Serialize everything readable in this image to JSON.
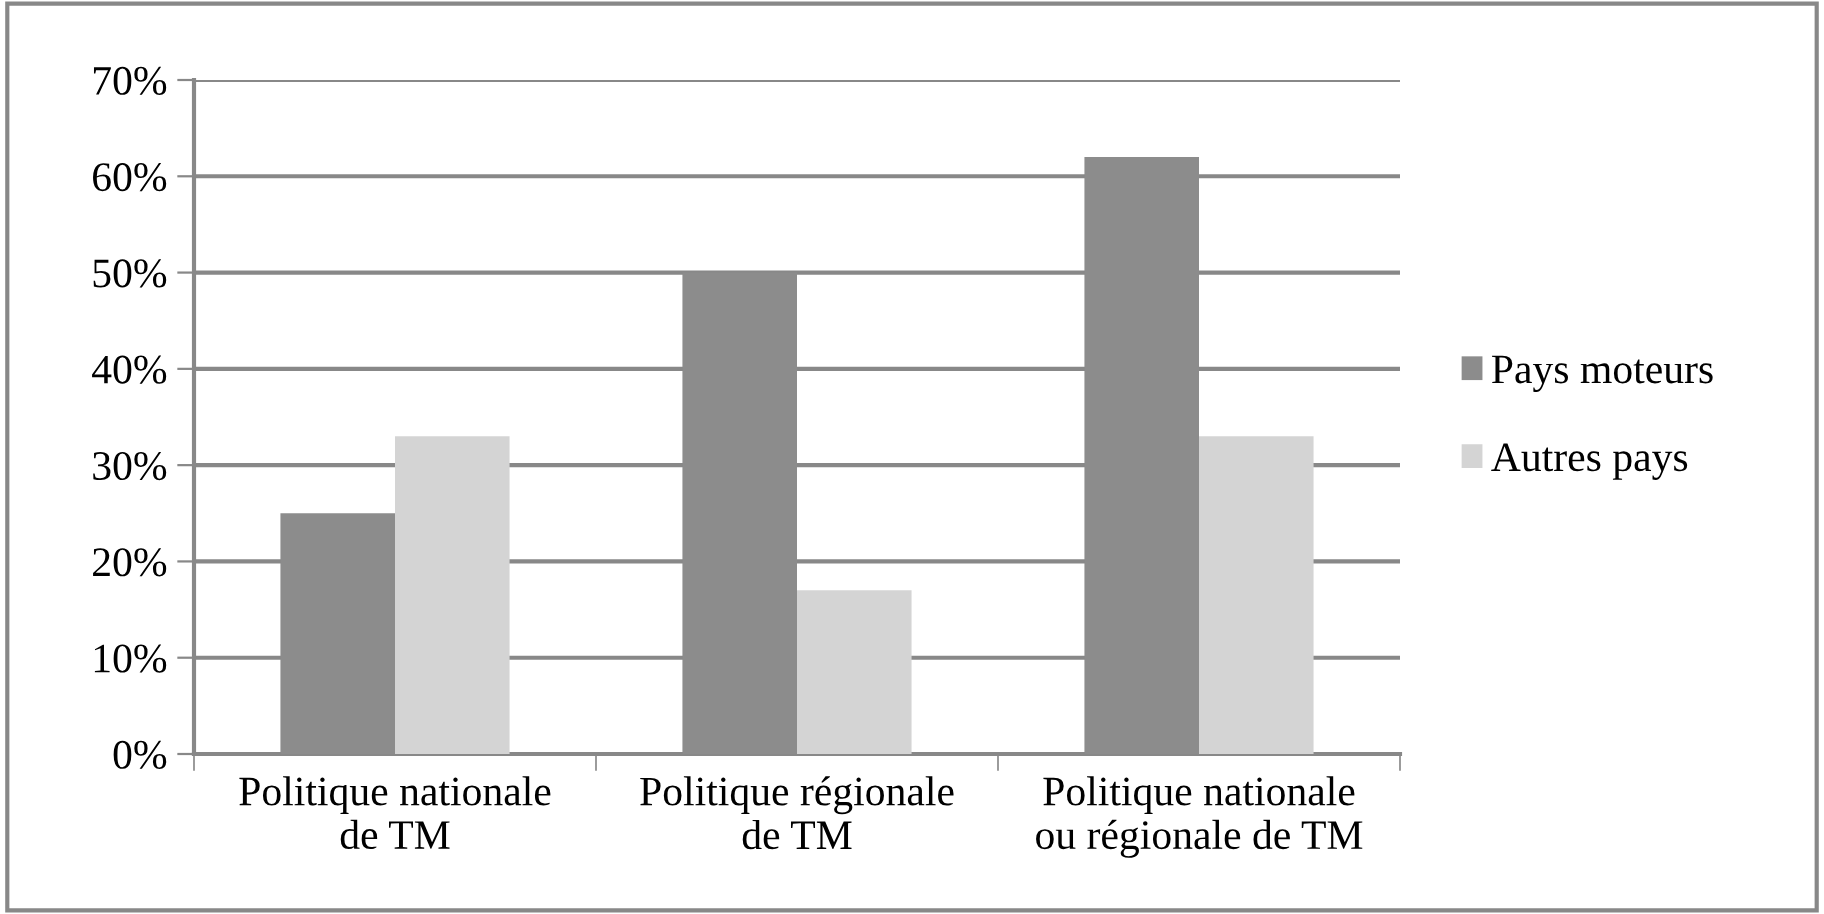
{
  "chart_data": {
    "type": "bar",
    "categories": [
      "Politique nationale\nde TM",
      "Politique régionale\nde TM",
      "Politique nationale\nou régionale de TM"
    ],
    "series": [
      {
        "name": "Pays moteurs",
        "color": "#8c8c8c",
        "values": [
          25,
          50,
          62
        ]
      },
      {
        "name": "Autres pays",
        "color": "#d4d4d4",
        "values": [
          33,
          17,
          33
        ]
      }
    ],
    "ylim": [
      0,
      70
    ],
    "yticks": [
      {
        "value": 0,
        "label": "0%"
      },
      {
        "value": 10,
        "label": "10%"
      },
      {
        "value": 20,
        "label": "20%"
      },
      {
        "value": 30,
        "label": "30%"
      },
      {
        "value": 40,
        "label": "40%"
      },
      {
        "value": 50,
        "label": "50%"
      },
      {
        "value": 60,
        "label": "60%"
      },
      {
        "value": 70,
        "label": "70%"
      }
    ],
    "grid": "y",
    "legend": "right"
  }
}
